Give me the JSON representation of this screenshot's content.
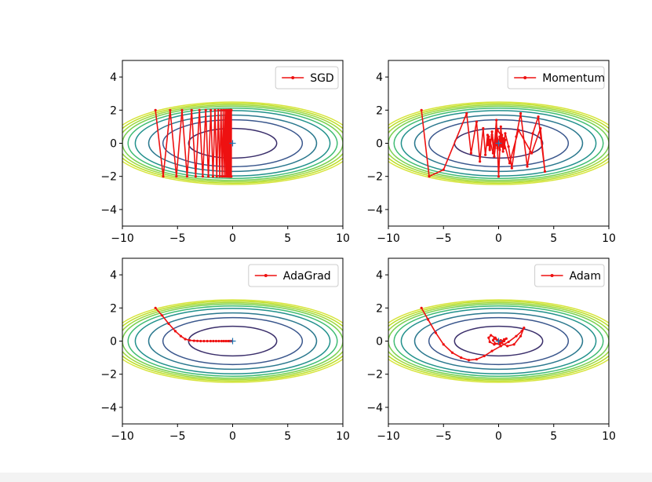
{
  "chart_data": [
    {
      "type": "line",
      "title": "",
      "xlim": [
        -10,
        10
      ],
      "ylim": [
        -5,
        5
      ],
      "xticks": [
        -10,
        -5,
        0,
        5,
        10
      ],
      "yticks": [
        -4,
        -2,
        0,
        2,
        4
      ],
      "contour": {
        "function": "x^2/20 + y^2",
        "levels": [
          0.8,
          2.0,
          2.9,
          3.9,
          4.5,
          5.0,
          5.4,
          5.8,
          6.2
        ],
        "colors": [
          "#3b2f6b",
          "#39568c",
          "#2a788e",
          "#21918c",
          "#3fbc73",
          "#7ad151",
          "#9fd83e",
          "#bddf26",
          "#d6e43a"
        ]
      },
      "minimum_marker": {
        "x": 0,
        "y": 0,
        "color": "#1f77b4"
      },
      "legend": {
        "position": "upper right",
        "entries": [
          "SGD"
        ]
      },
      "series": [
        {
          "name": "SGD",
          "color": "#ee1111",
          "x": [
            -7.0,
            -6.3,
            -5.67,
            -5.1,
            -4.59,
            -4.13,
            -3.72,
            -3.35,
            -3.01,
            -2.71,
            -2.44,
            -2.2,
            -1.98,
            -1.78,
            -1.6,
            -1.44,
            -1.3,
            -1.17,
            -1.05,
            -0.95,
            -0.85,
            -0.77,
            -0.69,
            -0.62,
            -0.56,
            -0.5,
            -0.45,
            -0.41,
            -0.37,
            -0.33,
            -0.3,
            -0.27,
            -0.24,
            -0.22,
            -0.2,
            -0.18,
            -0.16,
            -0.14,
            -0.13,
            -0.12,
            -0.11
          ],
          "y": [
            2,
            -2,
            2,
            -2,
            2,
            -2,
            2,
            -2,
            2,
            -2,
            2,
            -2,
            2,
            -2,
            2,
            -2,
            2,
            -2,
            2,
            -2,
            2,
            -2,
            2,
            -2,
            2,
            -2,
            2,
            -2,
            2,
            -2,
            2,
            -2,
            2,
            -2,
            2,
            -2,
            2,
            -2,
            2,
            -2,
            2
          ]
        }
      ]
    },
    {
      "type": "line",
      "title": "",
      "xlim": [
        -10,
        10
      ],
      "ylim": [
        -5,
        5
      ],
      "xticks": [
        -10,
        -5,
        0,
        5,
        10
      ],
      "yticks": [
        -4,
        -2,
        0,
        2,
        4
      ],
      "contour": {
        "function": "x^2/20 + y^2",
        "levels": [
          0.8,
          2.0,
          2.9,
          3.9,
          4.5,
          5.0,
          5.4,
          5.8,
          6.2
        ],
        "colors": [
          "#3b2f6b",
          "#39568c",
          "#2a788e",
          "#21918c",
          "#3fbc73",
          "#7ad151",
          "#9fd83e",
          "#bddf26",
          "#d6e43a"
        ]
      },
      "minimum_marker": {
        "x": 0,
        "y": 0,
        "color": "#1f77b4"
      },
      "legend": {
        "position": "upper right",
        "entries": [
          "Momentum"
        ]
      },
      "series": [
        {
          "name": "Momentum",
          "color": "#ee1111",
          "x": [
            -7.0,
            -6.3,
            -5.0,
            -2.9,
            -2.5,
            -2.0,
            -1.7,
            -1.4,
            -1.2,
            -1.0,
            -0.8,
            -0.6,
            -0.4,
            -0.2,
            0.0,
            0.2,
            0.4,
            0.6,
            0.9,
            1.2,
            1.6,
            2.0,
            2.6,
            3.1,
            3.6,
            4.2,
            3.8,
            3.0,
            1.8,
            1.0,
            0.4,
            -0.1,
            -0.4,
            -0.6,
            -0.8,
            -0.9,
            -1.0,
            -0.8,
            -0.5,
            -0.2,
            0.1,
            0.3,
            0.5,
            0.6,
            0.5,
            0.3,
            0.1,
            -0.1,
            -0.3,
            -0.4,
            -0.3
          ],
          "y": [
            2.0,
            -2.0,
            -1.6,
            1.8,
            -0.6,
            1.3,
            -1.1,
            0.9,
            -0.7,
            0.5,
            -0.4,
            0.7,
            -0.3,
            1.4,
            -2.0,
            1.0,
            -0.5,
            0.6,
            -0.2,
            -1.5,
            0.4,
            1.8,
            -1.4,
            0.6,
            1.6,
            -1.7,
            0.9,
            -0.6,
            0.8,
            -1.2,
            0.3,
            0.8,
            -0.8,
            0.5,
            -0.3,
            0.4,
            -0.1,
            0.2,
            -0.6,
            0.7,
            -0.4,
            0.5,
            -0.3,
            0.2,
            0.1,
            -0.2,
            0.4,
            -0.3,
            0.2,
            -0.1,
            0.0
          ]
        }
      ]
    },
    {
      "type": "line",
      "title": "",
      "xlim": [
        -10,
        10
      ],
      "ylim": [
        -5,
        5
      ],
      "xticks": [
        -10,
        -5,
        0,
        5,
        10
      ],
      "yticks": [
        -4,
        -2,
        0,
        2,
        4
      ],
      "contour": {
        "function": "x^2/20 + y^2",
        "levels": [
          0.8,
          2.0,
          2.9,
          3.9,
          4.5,
          5.0,
          5.4,
          5.8,
          6.2
        ],
        "colors": [
          "#3b2f6b",
          "#39568c",
          "#2a788e",
          "#21918c",
          "#3fbc73",
          "#7ad151",
          "#9fd83e",
          "#bddf26",
          "#d6e43a"
        ]
      },
      "minimum_marker": {
        "x": 0,
        "y": 0,
        "color": "#1f77b4"
      },
      "legend": {
        "position": "upper right",
        "entries": [
          "AdaGrad"
        ]
      },
      "series": [
        {
          "name": "AdaGrad",
          "color": "#ee1111",
          "x": [
            -7.0,
            -6.4,
            -5.8,
            -5.2,
            -4.7,
            -4.3,
            -3.9,
            -3.5,
            -3.2,
            -2.9,
            -2.6,
            -2.3,
            -2.0,
            -1.75,
            -1.5,
            -1.25,
            -1.0,
            -0.8,
            -0.6,
            -0.4,
            -0.25,
            -0.1
          ],
          "y": [
            2.0,
            1.55,
            1.05,
            0.6,
            0.3,
            0.12,
            0.05,
            0.02,
            0.01,
            0.0,
            0.0,
            0.0,
            0.0,
            0.0,
            0.0,
            0.0,
            0.0,
            0.0,
            0.0,
            0.0,
            0.0,
            0.0
          ]
        }
      ]
    },
    {
      "type": "line",
      "title": "",
      "xlim": [
        -10,
        10
      ],
      "ylim": [
        -5,
        5
      ],
      "xticks": [
        -10,
        -5,
        0,
        5,
        10
      ],
      "yticks": [
        -4,
        -2,
        0,
        2,
        4
      ],
      "contour": {
        "function": "x^2/20 + y^2",
        "levels": [
          0.8,
          2.0,
          2.9,
          3.9,
          4.5,
          5.0,
          5.4,
          5.8,
          6.2
        ],
        "colors": [
          "#3b2f6b",
          "#39568c",
          "#2a788e",
          "#21918c",
          "#3fbc73",
          "#7ad151",
          "#9fd83e",
          "#bddf26",
          "#d6e43a"
        ]
      },
      "minimum_marker": {
        "x": 0,
        "y": 0,
        "color": "#1f77b4"
      },
      "legend": {
        "position": "upper right",
        "entries": [
          "Adam"
        ]
      },
      "series": [
        {
          "name": "Adam",
          "color": "#ee1111",
          "x": [
            -7.0,
            -6.4,
            -5.7,
            -5.0,
            -4.2,
            -3.4,
            -2.7,
            -2.0,
            -1.3,
            -0.6,
            0.2,
            0.9,
            1.6,
            2.1,
            2.3,
            2.0,
            1.4,
            0.8,
            0.2,
            -0.3,
            -0.7,
            -0.9,
            -0.8,
            -0.4,
            0.1,
            0.5,
            0.7,
            0.5,
            0.1,
            -0.3,
            -0.5,
            -0.4,
            -0.1,
            0.2,
            0.3,
            0.2,
            0.0
          ],
          "y": [
            2.0,
            1.3,
            0.5,
            -0.2,
            -0.7,
            -1.0,
            -1.15,
            -1.1,
            -0.9,
            -0.6,
            -0.3,
            -0.05,
            0.3,
            0.6,
            0.8,
            0.3,
            -0.2,
            -0.3,
            -0.1,
            0.2,
            0.35,
            0.2,
            -0.05,
            -0.2,
            -0.1,
            0.1,
            0.15,
            0.0,
            -0.2,
            -0.15,
            0.05,
            0.15,
            0.05,
            -0.1,
            -0.05,
            0.05,
            0.0
          ]
        }
      ]
    }
  ]
}
